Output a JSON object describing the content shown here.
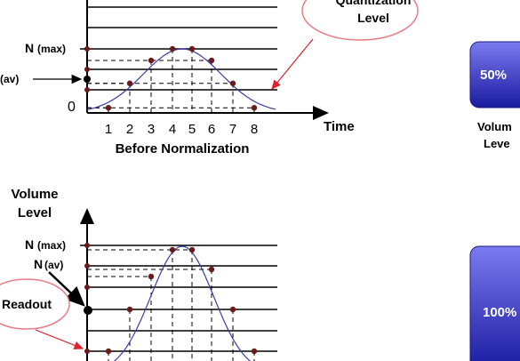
{
  "top": {
    "n_label": "N",
    "n_max_sub": "(max)",
    "av_label": "(av)",
    "zero_label": "0",
    "x_ticks": [
      "1",
      "2",
      "3",
      "4",
      "5",
      "6",
      "7",
      "8"
    ],
    "time_label": "Time",
    "caption": "Before Normalization",
    "callout_line1": "Quantization",
    "callout_line2": "Level",
    "samples": [
      0.08,
      0.42,
      0.82,
      1.0,
      1.0,
      0.82,
      0.42,
      0.08
    ]
  },
  "bottom": {
    "ylabel_line1": "Volume",
    "ylabel_line2": "Level",
    "n_label": "N",
    "n_max_sub": "(max)",
    "n_av_label": "N",
    "n_av_sub": "(av)",
    "readout_label": "Readout",
    "samples": [
      0.08,
      0.42,
      0.82,
      1.0,
      1.0,
      0.82,
      0.42,
      0.08
    ]
  },
  "right": {
    "top_box_label": "50%",
    "bottom_box_label": "100%",
    "volume_line1": "Volum",
    "volume_line2": "Leve"
  },
  "colors": {
    "curve": "#3a3aa8",
    "dot": "#6b1a1a",
    "callout_stroke": "#e87d86",
    "arrow_red": "#e0202a",
    "box_top": "#7777ee",
    "box_bottom": "#1a1aa0"
  }
}
